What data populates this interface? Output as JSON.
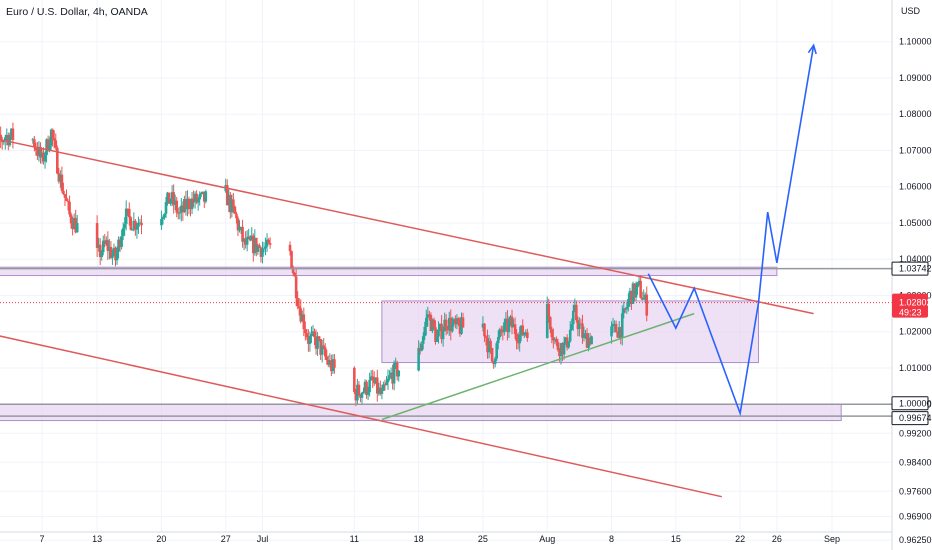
{
  "chart_title": "Euro / U.S. Dollar, 4h, OANDA",
  "currency": "USD",
  "colors": {
    "up": "#26a69a",
    "down": "#ef5350",
    "channel": "#e05a5a",
    "trend": "#6db36d",
    "projection": "#2962ff",
    "zone_fill": "#e2c8ec",
    "zone_stroke": "#a98fcc",
    "price_badge": "#f23645"
  },
  "chart_data": {
    "type": "candlestick",
    "title": "Euro / U.S. Dollar, 4h, OANDA",
    "x_tick_labels": [
      "7",
      "13",
      "20",
      "27",
      "Jul",
      "11",
      "18",
      "25",
      "Aug",
      "8",
      "15",
      "22",
      "26",
      "Sep"
    ],
    "y_tick_labels": [
      "1.10000",
      "1.09000",
      "1.08000",
      "1.07000",
      "1.06000",
      "1.05000",
      "1.04000",
      "1.03000",
      "1.02000",
      "1.01000",
      "1.00000",
      "0.99200",
      "0.98400",
      "0.97600",
      "0.96900",
      "0.96250"
    ],
    "y_range": [
      0.9598,
      1.1115
    ],
    "price_badges": [
      {
        "label": "1.03742",
        "value": 1.03742,
        "style": "horizontal-line"
      },
      {
        "label": "1.02802",
        "countdown": "49:23",
        "value": 1.02802,
        "style": "current-price"
      },
      {
        "label": "1.00000",
        "value": 1.0,
        "style": "horizontal-line"
      },
      {
        "label": "0.99674",
        "value": 0.99674,
        "style": "horizontal-line"
      }
    ],
    "key_levels": [
      1.03742,
      1.0,
      0.99674
    ],
    "last_price": 1.02802,
    "price_path": [
      [
        "Jun 1",
        1.068
      ],
      [
        "Jun 3",
        1.074
      ],
      [
        "Jun 6",
        1.073
      ],
      [
        "Jun 7",
        1.067
      ],
      [
        "Jun 8",
        1.075
      ],
      [
        "Jun 9",
        1.062
      ],
      [
        "Jun 10",
        1.052
      ],
      [
        "Jun 13",
        1.041
      ],
      [
        "Jun 14",
        1.044
      ],
      [
        "Jun 15",
        1.04
      ],
      [
        "Jun 16",
        1.052
      ],
      [
        "Jun 17",
        1.05
      ],
      [
        "Jun 20",
        1.053
      ],
      [
        "Jun 21",
        1.057
      ],
      [
        "Jun 22",
        1.052
      ],
      [
        "Jun 23",
        1.056
      ],
      [
        "Jun 24",
        1.056
      ],
      [
        "Jun 27",
        1.058
      ],
      [
        "Jun 28",
        1.052
      ],
      [
        "Jun 29",
        1.044
      ],
      [
        "Jun 30",
        1.044
      ],
      [
        "Jul 1",
        1.043
      ],
      [
        "Jul 4",
        1.042
      ],
      [
        "Jul 5",
        1.027
      ],
      [
        "Jul 6",
        1.018
      ],
      [
        "Jul 7",
        1.017
      ],
      [
        "Jul 8",
        1.012
      ],
      [
        "Jul 11",
        1.003
      ],
      [
        "Jul 12",
        1.004
      ],
      [
        "Jul 13",
        1.006
      ],
      [
        "Jul 14",
        1.002
      ],
      [
        "Jul 15",
        1.008
      ],
      [
        "Jul 18",
        1.014
      ],
      [
        "Jul 19",
        1.025
      ],
      [
        "Jul 20",
        1.018
      ],
      [
        "Jul 21",
        1.023
      ],
      [
        "Jul 22",
        1.021
      ],
      [
        "Jul 25",
        1.022
      ],
      [
        "Jul 26",
        1.012
      ],
      [
        "Jul 27",
        1.02
      ],
      [
        "Jul 28",
        1.022
      ],
      [
        "Jul 29",
        1.019
      ],
      [
        "Aug 1",
        1.026
      ],
      [
        "Aug 2",
        1.016
      ],
      [
        "Aug 3",
        1.016
      ],
      [
        "Aug 4",
        1.025
      ],
      [
        "Aug 5",
        1.018
      ],
      [
        "Aug 8",
        1.02
      ],
      [
        "Aug 9",
        1.021
      ],
      [
        "Aug 10",
        1.03
      ],
      [
        "Aug 11",
        1.032
      ],
      [
        "Aug 12",
        1.026
      ]
    ],
    "projection_path": [
      [
        "Aug 12",
        1.036
      ],
      [
        "Aug 15",
        1.021
      ],
      [
        "Aug 17",
        1.032
      ],
      [
        "Aug 22",
        0.9975
      ],
      [
        "Aug 24",
        1.028
      ],
      [
        "Aug 25",
        1.053
      ],
      [
        "Aug 26",
        1.039
      ],
      [
        "Aug 30",
        1.099
      ]
    ],
    "annotations": {
      "channel_upper": [
        [
          "May 26",
          1.077
        ],
        [
          "Aug 30",
          1.025
        ]
      ],
      "channel_lower": [
        [
          "May 26",
          1.023
        ],
        [
          "Aug 20",
          0.9745
        ]
      ],
      "support_trendline": [
        [
          "Jul 14",
          0.9958
        ],
        [
          "Aug 17",
          1.025
        ]
      ],
      "range_box": {
        "dates": [
          "Jul 14",
          "Aug 24"
        ],
        "prices": [
          1.0115,
          1.0285
        ]
      },
      "resistance_zone": {
        "dates": [
          "May 26",
          "Aug 26"
        ],
        "prices": [
          1.0355,
          1.0378
        ]
      },
      "parity_zone": {
        "dates": [
          "May 26",
          "Sep 2"
        ],
        "prices": [
          0.9955,
          1.0
        ]
      }
    }
  }
}
